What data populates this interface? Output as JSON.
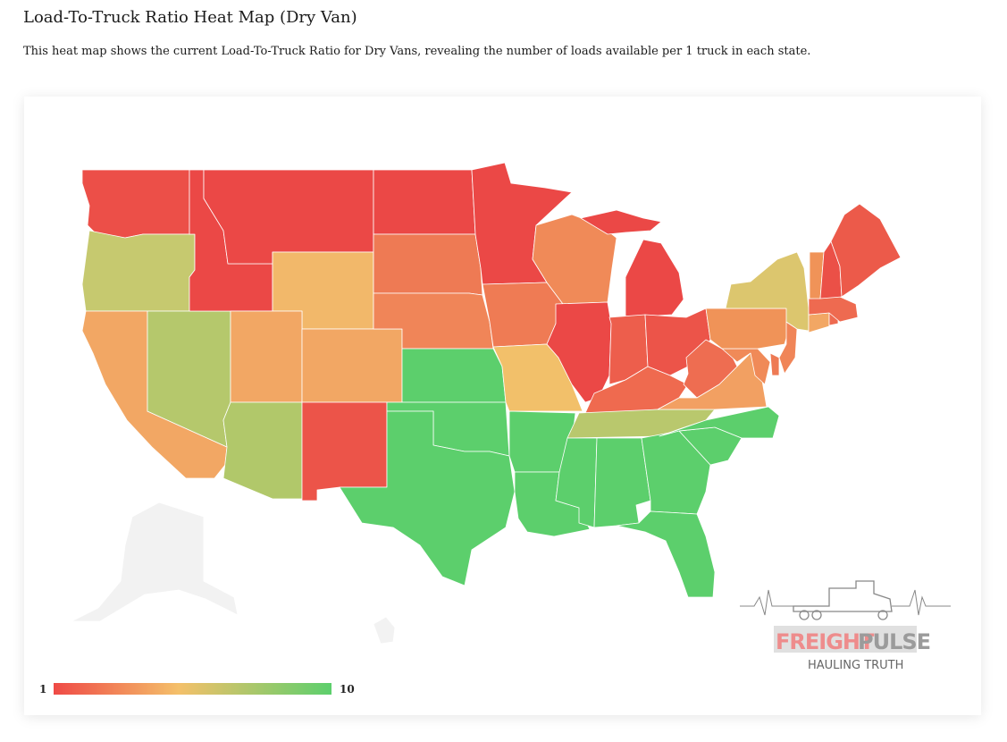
{
  "page": {
    "title": "Load-To-Truck Ratio Heat Map (Dry Van)",
    "description": "This heat map shows the current Load-To-Truck Ratio for Dry Vans, revealing the number of loads available per 1 truck in each state."
  },
  "legend": {
    "min_label": "1",
    "max_label": "10",
    "min_color": "#ef4a46",
    "mid_color": "#f4c06a",
    "max_color": "#5ccf6c"
  },
  "logo": {
    "brand_part1": "FREIGHT",
    "brand_part2": "PULSE",
    "tagline": "HAULING TRUTH",
    "brand_color_1": "#ee8c8c",
    "brand_color_2": "#9b9b9b"
  },
  "colors": {
    "no_data": "#f2f2f2",
    "state_border": "#ffffff"
  },
  "states": [
    {
      "code": "WA",
      "color": "#ec4f48"
    },
    {
      "code": "OR",
      "color": "#c6c96f"
    },
    {
      "code": "CA",
      "color": "#f2a764"
    },
    {
      "code": "ID",
      "color": "#eb4846"
    },
    {
      "code": "NV",
      "color": "#b5c86c"
    },
    {
      "code": "MT",
      "color": "#eb4846"
    },
    {
      "code": "WY",
      "color": "#f2b86a"
    },
    {
      "code": "UT",
      "color": "#f2a764"
    },
    {
      "code": "AZ",
      "color": "#b1c86a"
    },
    {
      "code": "CO",
      "color": "#f2a764"
    },
    {
      "code": "NM",
      "color": "#ec5449"
    },
    {
      "code": "ND",
      "color": "#eb4846"
    },
    {
      "code": "SD",
      "color": "#ee7a54"
    },
    {
      "code": "NE",
      "color": "#f08558"
    },
    {
      "code": "KS",
      "color": "#5ccf6c"
    },
    {
      "code": "OK",
      "color": "#5ccf6c"
    },
    {
      "code": "TX",
      "color": "#5ccf6c"
    },
    {
      "code": "MN",
      "color": "#eb4846"
    },
    {
      "code": "IA",
      "color": "#ef7b54"
    },
    {
      "code": "MO",
      "color": "#f2c06a"
    },
    {
      "code": "AR",
      "color": "#5ccf6c"
    },
    {
      "code": "LA",
      "color": "#5ccf6c"
    },
    {
      "code": "WI",
      "color": "#f08a58"
    },
    {
      "code": "IL",
      "color": "#eb4846"
    },
    {
      "code": "MI",
      "color": "#eb4846"
    },
    {
      "code": "IN",
      "color": "#ed5e4c"
    },
    {
      "code": "OH",
      "color": "#ec5449"
    },
    {
      "code": "KY",
      "color": "#ef6a4f"
    },
    {
      "code": "TN",
      "color": "#b9c86d"
    },
    {
      "code": "MS",
      "color": "#5ccf6c"
    },
    {
      "code": "AL",
      "color": "#5ccf6c"
    },
    {
      "code": "GA",
      "color": "#5ccf6c"
    },
    {
      "code": "FL",
      "color": "#5ccf6c"
    },
    {
      "code": "SC",
      "color": "#5ccf6c"
    },
    {
      "code": "NC",
      "color": "#5ccf6c"
    },
    {
      "code": "VA",
      "color": "#f2a062"
    },
    {
      "code": "WV",
      "color": "#ee6d51"
    },
    {
      "code": "PA",
      "color": "#f09358"
    },
    {
      "code": "NY",
      "color": "#dcc66e"
    },
    {
      "code": "VT",
      "color": "#f09358"
    },
    {
      "code": "NH",
      "color": "#eb5047"
    },
    {
      "code": "ME",
      "color": "#ec5a4a"
    },
    {
      "code": "MA",
      "color": "#ee6a50"
    },
    {
      "code": "CT",
      "color": "#f2a764"
    },
    {
      "code": "RI",
      "color": "#ee6a50"
    },
    {
      "code": "NJ",
      "color": "#f08558"
    },
    {
      "code": "DE",
      "color": "#ee7a54"
    },
    {
      "code": "MD",
      "color": "#f08a58"
    },
    {
      "code": "AK",
      "color": "#f2f2f2"
    },
    {
      "code": "HI",
      "color": "#f2f2f2"
    }
  ]
}
